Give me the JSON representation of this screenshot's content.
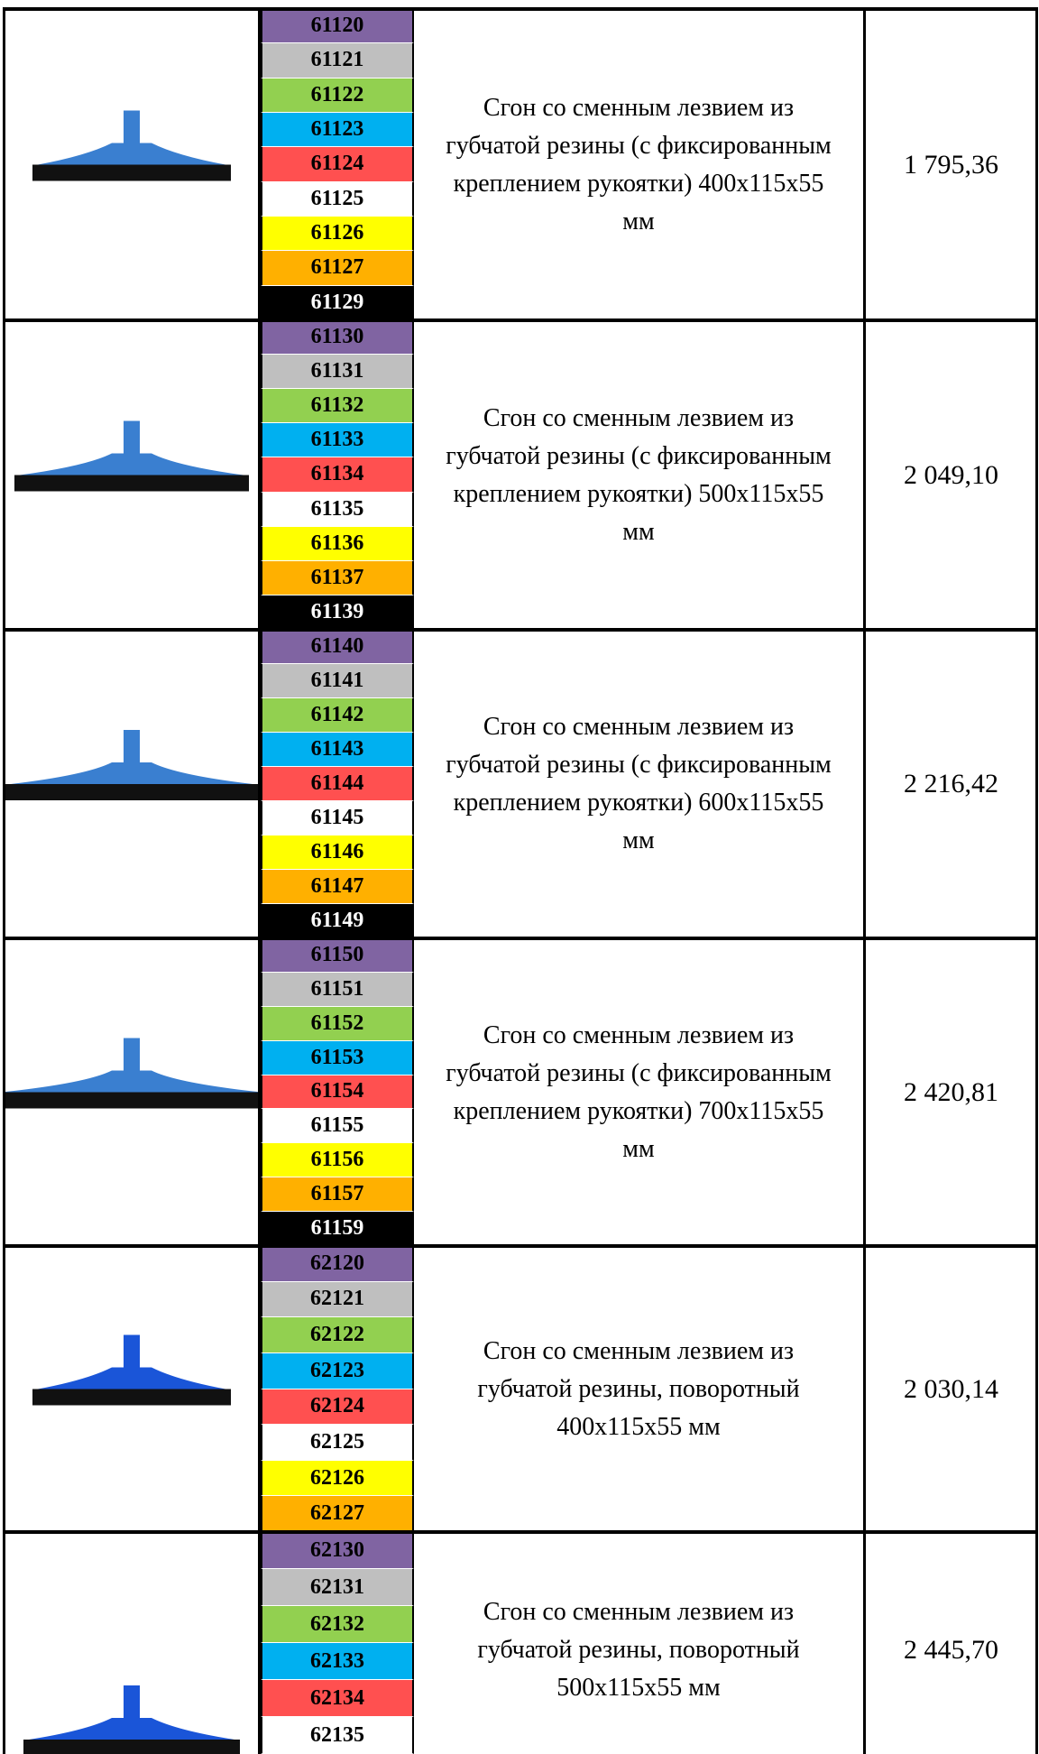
{
  "table": {
    "rows": [
      {
        "codes": [
          "61120",
          "61121",
          "61122",
          "61123",
          "61124",
          "61125",
          "61126",
          "61127",
          "61129"
        ],
        "description": "Сгон со сменным лезвием из губчатой резины (с фиксированным креплением рукоятки) 400x115x55 мм",
        "price": "1 795,36"
      },
      {
        "codes": [
          "61130",
          "61131",
          "61132",
          "61133",
          "61134",
          "61135",
          "61136",
          "61137",
          "61139"
        ],
        "description": "Сгон со сменным лезвием из губчатой резины (с фиксированным креплением рукоятки)  500x115x55 мм",
        "price": "2 049,10"
      },
      {
        "codes": [
          "61140",
          "61141",
          "61142",
          "61143",
          "61144",
          "61145",
          "61146",
          "61147",
          "61149"
        ],
        "description": "Сгон со сменным лезвием из губчатой резины (с фиксированным креплением рукоятки)  600x115x55 мм",
        "price": "2 216,42"
      },
      {
        "codes": [
          "61150",
          "61151",
          "61152",
          "61153",
          "61154",
          "61155",
          "61156",
          "61157",
          "61159"
        ],
        "description": "Сгон со сменным лезвием из губчатой резины (с фиксированным креплением рукоятки)  700x115x55 мм",
        "price": "2 420,81"
      },
      {
        "codes": [
          "62120",
          "62121",
          "62122",
          "62123",
          "62124",
          "62125",
          "62126",
          "62127"
        ],
        "description": "Сгон со сменным лезвием из губчатой резины, поворотный 400x115x55 мм",
        "price": "2 030,14"
      },
      {
        "codes": [
          "62130",
          "62131",
          "62132",
          "62133",
          "62134",
          "62135"
        ],
        "description": "Сгон со сменным лезвием из губчатой резины, поворотный 500x115x55 мм",
        "price": "2 445,70"
      }
    ]
  }
}
